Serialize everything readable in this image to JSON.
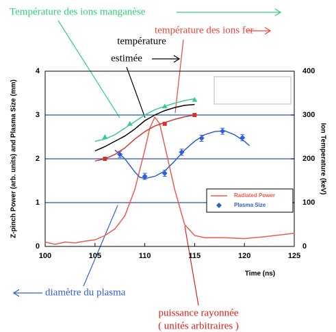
{
  "chart_data": {
    "type": "line",
    "x_label": "Time (ns)",
    "y_label": "Z-pinch Power (arb. units) and Plasma Size (mm)",
    "y2_label": "Ion Temperature (keV)",
    "xlim": [
      100,
      125
    ],
    "xticks": [
      100,
      105,
      110,
      115,
      120,
      125
    ],
    "ylim": [
      0,
      4
    ],
    "yticks": [
      0,
      1,
      2,
      3,
      4
    ],
    "y2lim": [
      0,
      400
    ],
    "y2ticks": [
      0,
      100,
      200,
      300,
      400
    ],
    "grid": true,
    "grid_color": "#2a4fb0",
    "legend": "lower right",
    "series": [
      {
        "name": "Radiated Power",
        "color": "#f05a4a",
        "line": true,
        "x": [
          100,
          101,
          102,
          103,
          104,
          105,
          106,
          107,
          108,
          109,
          110,
          110.5,
          111,
          111.5,
          112,
          113,
          114,
          115,
          116,
          118,
          120,
          122,
          125
        ],
        "values": [
          0.1,
          0.05,
          0.1,
          0.08,
          0.12,
          0.15,
          0.25,
          0.4,
          0.7,
          1.3,
          2.2,
          2.7,
          2.95,
          2.8,
          2.3,
          1.3,
          0.5,
          0.25,
          0.2,
          0.2,
          0.18,
          0.22,
          0.3
        ]
      },
      {
        "name": "Plasma Size",
        "color": "#2f5fd6",
        "marker": "diamond",
        "x": [
          107.5,
          110,
          112,
          113.7,
          115.7,
          117.8,
          119.8
        ],
        "values": [
          2.1,
          1.6,
          1.67,
          2.15,
          2.47,
          2.63,
          2.48
        ],
        "errors": [
          0.07,
          0.07,
          0.07,
          0.07,
          0.07,
          0.07,
          0.07
        ]
      },
      {
        "color": "#2f5fd6",
        "line": true,
        "x": [
          107,
          108,
          109,
          109.5,
          110,
          111,
          112,
          113,
          114,
          115,
          116,
          117,
          118,
          119,
          120,
          120.5
        ],
        "values": [
          2.2,
          2.0,
          1.7,
          1.58,
          1.55,
          1.6,
          1.72,
          1.95,
          2.2,
          2.4,
          2.55,
          2.62,
          2.64,
          2.55,
          2.4,
          2.3
        ]
      },
      {
        "color": "#d8322a",
        "marker": "square",
        "axis": "y2",
        "x": [
          106,
          112,
          115
        ],
        "values": [
          200,
          280,
          300
        ]
      },
      {
        "color": "#d8322a",
        "line": true,
        "axis": "y2",
        "x": [
          105,
          106,
          107,
          108,
          109,
          110,
          111,
          112,
          113,
          114,
          115
        ],
        "values": [
          195,
          200,
          210,
          225,
          245,
          262,
          275,
          283,
          290,
          296,
          300
        ]
      },
      {
        "color": "#3cc99a",
        "marker": "triangle",
        "axis": "y2",
        "x": [
          106,
          108.5,
          112,
          115
        ],
        "values": [
          250,
          280,
          320,
          335
        ]
      },
      {
        "color": "#3cc99a",
        "line": true,
        "axis": "y2",
        "x": [
          105,
          106,
          107,
          108,
          109,
          110,
          111,
          112,
          113,
          114,
          115
        ],
        "values": [
          240,
          245,
          255,
          270,
          285,
          300,
          312,
          320,
          327,
          333,
          337
        ]
      },
      {
        "color": "#000000",
        "line": true,
        "axis": "y2",
        "x": [
          105,
          106,
          107,
          108,
          109,
          110,
          111,
          112,
          113,
          114,
          115
        ],
        "values": [
          218,
          228,
          240,
          252,
          268,
          287,
          300,
          310,
          317,
          322,
          324
        ]
      }
    ],
    "annotations": [
      {
        "lines": [
          "Température des ions manganèse"
        ],
        "color": "#2ed27a"
      },
      {
        "lines": [
          "température des ions fer"
        ],
        "color": "#f0443a"
      },
      {
        "lines": [
          "température",
          "estimée"
        ],
        "color": "#000000"
      },
      {
        "lines": [
          "diamètre du plasma"
        ],
        "color": "#2f5fd6"
      },
      {
        "lines": [
          "puissance rayonnée",
          "( unités arbitraires )"
        ],
        "color": "#e0201a"
      }
    ]
  }
}
